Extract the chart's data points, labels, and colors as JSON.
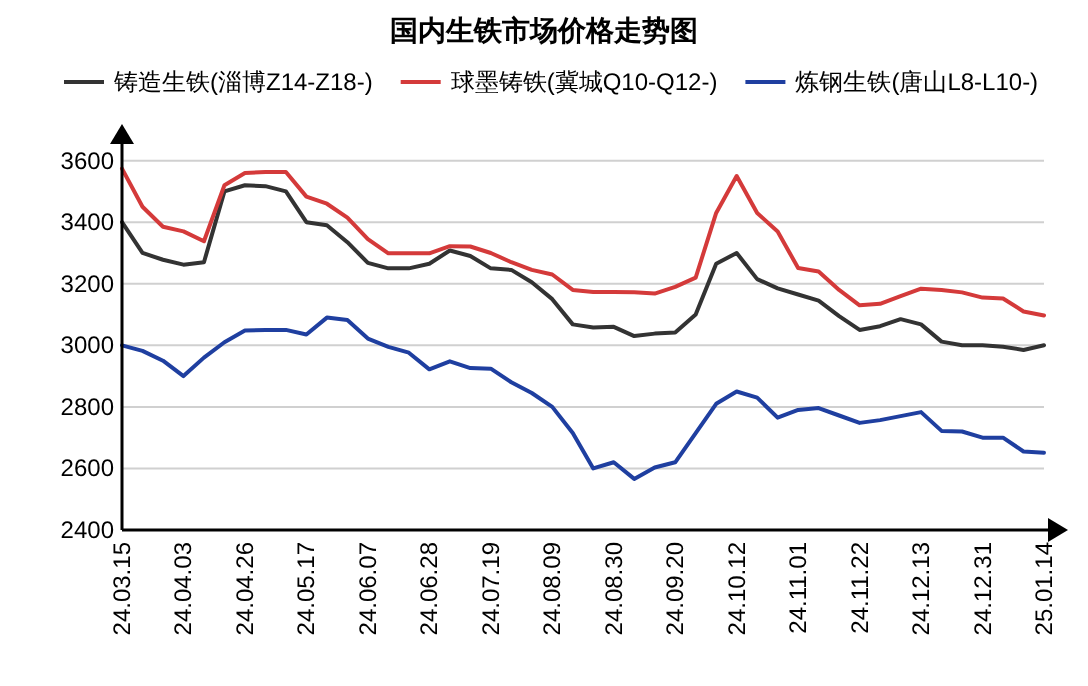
{
  "chart_data": {
    "type": "line",
    "title": "国内生铁市场价格走势图",
    "categories": [
      "24.03.15",
      null,
      null,
      "24.04.03",
      null,
      null,
      "24.04.26",
      null,
      null,
      "24.05.17",
      null,
      null,
      "24.06.07",
      null,
      null,
      "24.06.28",
      null,
      null,
      "24.07.19",
      null,
      null,
      "24.08.09",
      null,
      null,
      "24.08.30",
      null,
      null,
      "24.09.20",
      null,
      null,
      "24.10.12",
      null,
      null,
      "24.11.01",
      null,
      null,
      "24.11.22",
      null,
      null,
      "24.12.13",
      null,
      null,
      "24.12.31",
      null,
      null,
      "25.01.14"
    ],
    "ylim": [
      2400,
      3680
    ],
    "yticks": [
      2400,
      2600,
      2800,
      3000,
      3200,
      3400,
      3600
    ],
    "grid": "y",
    "legend": "top",
    "marker": "none",
    "line_style": "solid",
    "series": [
      {
        "name": "铸造生铁(淄博Z14-Z18-)",
        "color": "#333333",
        "values": [
          3400,
          3300,
          3278,
          3262,
          3270,
          3500,
          3520,
          3517,
          3500,
          3400,
          3390,
          3335,
          3268,
          3250,
          3250,
          3265,
          3308,
          3290,
          3250,
          3245,
          3205,
          3150,
          3068,
          3058,
          3060,
          3030,
          3038,
          3042,
          3100,
          3265,
          3300,
          3215,
          3185,
          3165,
          3145,
          3095,
          3050,
          3062,
          3085,
          3068,
          3012,
          3000,
          3000,
          2995,
          2985,
          3000
        ]
      },
      {
        "name": "球墨铸铁(冀城Q10-Q12-)",
        "color": "#d43a3a",
        "values": [
          3574,
          3450,
          3385,
          3370,
          3338,
          3520,
          3560,
          3563,
          3563,
          3483,
          3460,
          3415,
          3345,
          3299,
          3299,
          3299,
          3322,
          3321,
          3300,
          3270,
          3245,
          3230,
          3180,
          3173,
          3173,
          3172,
          3168,
          3190,
          3220,
          3430,
          3550,
          3430,
          3370,
          3251,
          3240,
          3180,
          3130,
          3135,
          3160,
          3184,
          3180,
          3172,
          3155,
          3152,
          3110,
          3097
        ]
      },
      {
        "name": "炼钢生铁(唐山L8-L10-)",
        "color": "#1f3fa0",
        "values": [
          3000,
          2982,
          2950,
          2900,
          2960,
          3010,
          3048,
          3050,
          3050,
          3035,
          3090,
          3082,
          3022,
          2995,
          2976,
          2922,
          2948,
          2926,
          2924,
          2880,
          2845,
          2800,
          2715,
          2600,
          2620,
          2566,
          2603,
          2620,
          2715,
          2810,
          2850,
          2830,
          2765,
          2790,
          2796,
          2772,
          2748,
          2757,
          2770,
          2783,
          2722,
          2720,
          2700,
          2700,
          2655,
          2651
        ]
      }
    ]
  }
}
